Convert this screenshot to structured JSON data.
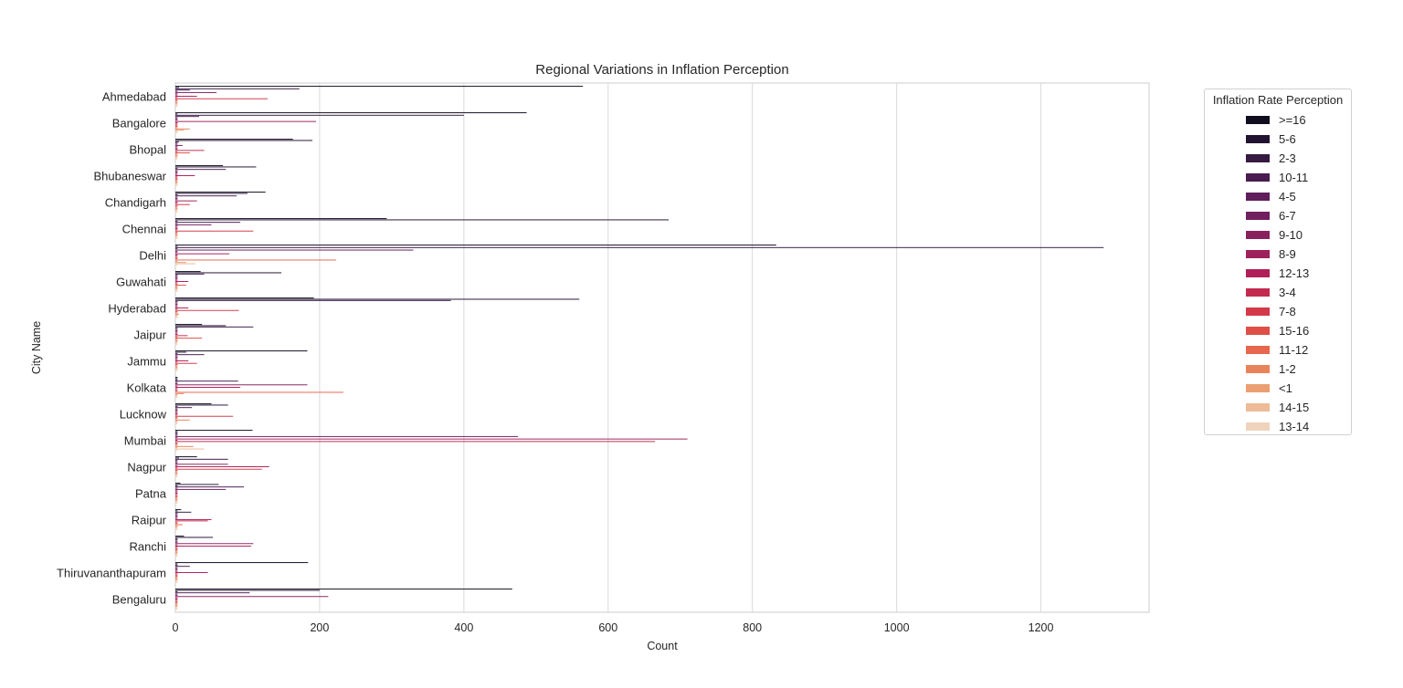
{
  "chart_data": {
    "type": "bar",
    "orientation": "horizontal",
    "title": "Regional Variations in Inflation Perception",
    "xlabel": "Count",
    "ylabel": "City Name",
    "xlim": [
      0,
      1350
    ],
    "xticks": [
      0,
      200,
      400,
      600,
      800,
      1000,
      1200
    ],
    "grid": "vertical",
    "legend_title": "Inflation Rate Perception",
    "legend_position": "outside-right",
    "categories": [
      "Ahmedabad",
      "Bangalore",
      "Bhopal",
      "Bhubaneswar",
      "Chandigarh",
      "Chennai",
      "Delhi",
      "Guwahati",
      "Hyderabad",
      "Jaipur",
      "Jammu",
      "Kolkata",
      "Lucknow",
      "Mumbai",
      "Nagpur",
      "Patna",
      "Raipur",
      "Ranchi",
      "Thiruvananthapuram",
      "Bengaluru"
    ],
    "series": [
      {
        "name": ">=16",
        "color": "#0f0d1e",
        "values": [
          565,
          487,
          163,
          66,
          125,
          293,
          833,
          35,
          192,
          37,
          183,
          3,
          50,
          107,
          30,
          7,
          8,
          12,
          184,
          467
        ]
      },
      {
        "name": "5-6",
        "color": "#221331",
        "values": [
          5,
          3,
          190,
          112,
          100,
          684,
          3,
          147,
          560,
          70,
          15,
          3,
          73,
          3,
          5,
          60,
          3,
          52,
          3,
          200
        ]
      },
      {
        "name": "2-3",
        "color": "#361a41",
        "values": [
          172,
          400,
          5,
          3,
          3,
          3,
          1287,
          40,
          382,
          108,
          3,
          3,
          3,
          3,
          73,
          3,
          22,
          3,
          3,
          3
        ]
      },
      {
        "name": "10-11",
        "color": "#4a1c50",
        "values": [
          20,
          33,
          3,
          70,
          85,
          90,
          3,
          3,
          3,
          3,
          40,
          87,
          23,
          3,
          3,
          95,
          3,
          3,
          20,
          103
        ]
      },
      {
        "name": "4-5",
        "color": "#5f1d5a",
        "values": [
          3,
          3,
          3,
          3,
          3,
          3,
          330,
          3,
          3,
          3,
          3,
          3,
          3,
          3,
          3,
          3,
          3,
          3,
          3,
          3
        ]
      },
      {
        "name": "6-7",
        "color": "#721f5f",
        "values": [
          57,
          3,
          10,
          3,
          3,
          50,
          3,
          3,
          3,
          3,
          3,
          3,
          3,
          475,
          3,
          70,
          3,
          3,
          3,
          3
        ]
      },
      {
        "name": "9-10",
        "color": "#8a215f",
        "values": [
          3,
          3,
          3,
          3,
          3,
          3,
          3,
          3,
          3,
          3,
          3,
          183,
          3,
          3,
          73,
          3,
          3,
          108,
          3,
          212
        ]
      },
      {
        "name": "8-9",
        "color": "#9e215c",
        "values": [
          3,
          195,
          3,
          3,
          30,
          3,
          75,
          3,
          3,
          3,
          3,
          3,
          3,
          710,
          3,
          3,
          3,
          3,
          3,
          3
        ]
      },
      {
        "name": "12-13",
        "color": "#b11f58",
        "values": [
          30,
          3,
          3,
          27,
          3,
          3,
          3,
          18,
          18,
          3,
          18,
          90,
          3,
          3,
          130,
          3,
          50,
          105,
          45,
          3
        ]
      },
      {
        "name": "3-4",
        "color": "#c42a50",
        "values": [
          3,
          3,
          40,
          3,
          3,
          3,
          3,
          3,
          3,
          17,
          3,
          3,
          3,
          665,
          3,
          3,
          45,
          3,
          3,
          3
        ]
      },
      {
        "name": "7-8",
        "color": "#d4394a",
        "values": [
          128,
          3,
          3,
          3,
          20,
          108,
          3,
          3,
          88,
          3,
          30,
          3,
          80,
          3,
          120,
          3,
          3,
          3,
          3,
          3
        ]
      },
      {
        "name": "15-16",
        "color": "#df4e47",
        "values": [
          3,
          3,
          20,
          3,
          3,
          3,
          3,
          15,
          3,
          37,
          3,
          3,
          3,
          3,
          3,
          3,
          3,
          3,
          3,
          3
        ]
      },
      {
        "name": "11-12",
        "color": "#e6674d",
        "values": [
          3,
          3,
          3,
          3,
          3,
          3,
          223,
          3,
          3,
          3,
          3,
          233,
          3,
          3,
          3,
          3,
          10,
          3,
          3,
          3
        ]
      },
      {
        "name": "1-2",
        "color": "#e98359",
        "values": [
          3,
          20,
          3,
          3,
          3,
          3,
          3,
          3,
          5,
          3,
          3,
          12,
          20,
          25,
          3,
          3,
          3,
          3,
          3,
          3
        ]
      },
      {
        "name": "<1",
        "color": "#eb9f72",
        "values": [
          3,
          12,
          3,
          3,
          3,
          3,
          15,
          3,
          3,
          3,
          3,
          3,
          3,
          3,
          3,
          3,
          3,
          3,
          3,
          3
        ]
      },
      {
        "name": "14-15",
        "color": "#edbb97",
        "values": [
          3,
          3,
          3,
          3,
          3,
          3,
          28,
          3,
          3,
          3,
          3,
          3,
          3,
          40,
          3,
          3,
          3,
          3,
          3,
          3
        ]
      },
      {
        "name": "13-14",
        "color": "#efd3bc",
        "values": [
          3,
          3,
          3,
          3,
          3,
          3,
          3,
          3,
          3,
          3,
          3,
          3,
          3,
          3,
          3,
          3,
          3,
          3,
          3,
          3
        ]
      }
    ]
  }
}
